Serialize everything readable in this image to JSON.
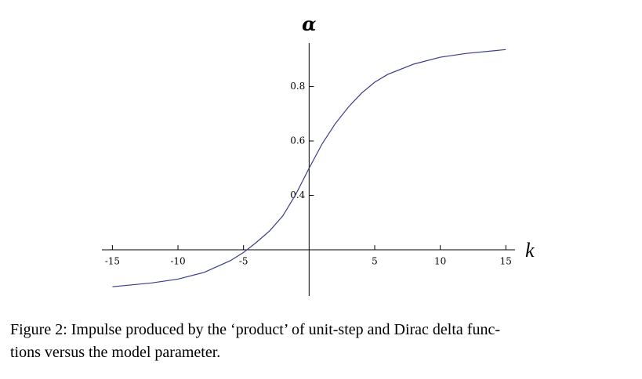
{
  "chart_data": {
    "type": "line",
    "x_label": "k",
    "y_label": "α",
    "x": [
      -15,
      -12,
      -10,
      -8,
      -6,
      -5,
      -4,
      -3,
      -2,
      -1,
      0,
      1,
      2,
      3,
      4,
      5,
      6,
      8,
      10,
      12,
      15
    ],
    "series": [
      {
        "color": "#3a3a8c",
        "values": [
          0.064,
          0.078,
          0.092,
          0.117,
          0.16,
          0.19,
          0.228,
          0.27,
          0.325,
          0.405,
          0.5,
          0.59,
          0.664,
          0.725,
          0.776,
          0.816,
          0.845,
          0.883,
          0.908,
          0.922,
          0.936
        ]
      }
    ],
    "xlim": [
      -15.8,
      15.7
    ],
    "ylim": [
      0.03,
      0.96
    ],
    "xticks": [
      -15,
      -10,
      -5,
      5,
      10,
      15
    ],
    "yticks": [
      0.4,
      0.6,
      0.8
    ],
    "axes_origin": [
      0,
      0.2
    ]
  },
  "caption": [
    "Figure 2: Impulse produced by the ‘product’ of unit-step and Dirac delta func-",
    "tions versus the model parameter."
  ]
}
